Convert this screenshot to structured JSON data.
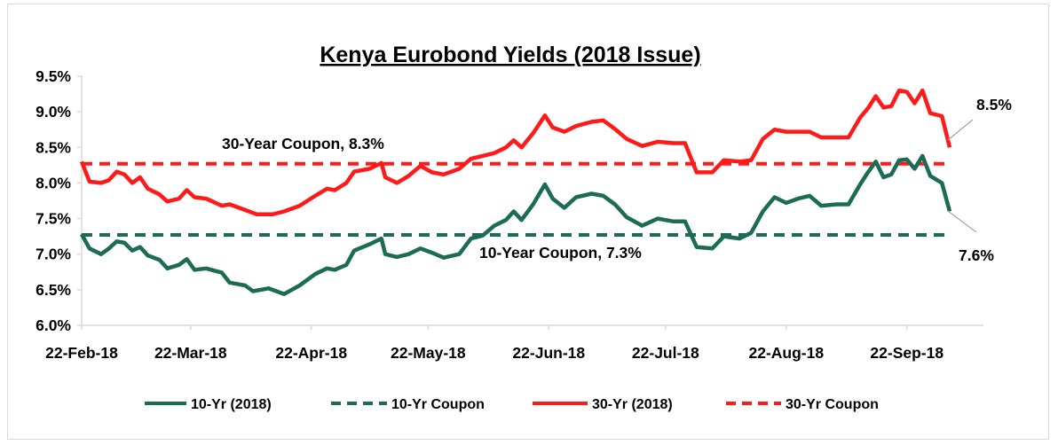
{
  "chart_data": {
    "type": "line",
    "title": "Kenya Eurobond Yields (2018 Issue)",
    "xlabel": "",
    "ylabel": "",
    "x_start": "2018-02-22",
    "x_end": "2018-10-03",
    "x_ticks": [
      {
        "date": "2018-02-22",
        "label": "22-Feb-18"
      },
      {
        "date": "2018-03-22",
        "label": "22-Mar-18"
      },
      {
        "date": "2018-04-22",
        "label": "22-Apr-18"
      },
      {
        "date": "2018-05-22",
        "label": "22-May-18"
      },
      {
        "date": "2018-06-22",
        "label": "22-Jun-18"
      },
      {
        "date": "2018-07-22",
        "label": "22-Jul-18"
      },
      {
        "date": "2018-08-22",
        "label": "22-Aug-18"
      },
      {
        "date": "2018-09-22",
        "label": "22-Sep-18"
      }
    ],
    "ylim": [
      6.0,
      9.5
    ],
    "y_ticks": [
      "6.0%",
      "6.5%",
      "7.0%",
      "7.5%",
      "8.0%",
      "8.5%",
      "9.0%",
      "9.5%"
    ],
    "y_tick_values": [
      6.0,
      6.5,
      7.0,
      7.5,
      8.0,
      8.5,
      9.0,
      9.5
    ],
    "grid": false,
    "legend_position": "bottom",
    "series": [
      {
        "name": "10-Yr (2018)",
        "color": "#1b6b55",
        "style": "solid",
        "points": [
          [
            "2018-02-22",
            7.28
          ],
          [
            "2018-02-24",
            7.08
          ],
          [
            "2018-02-27",
            7.0
          ],
          [
            "2018-03-01",
            7.08
          ],
          [
            "2018-03-03",
            7.18
          ],
          [
            "2018-03-05",
            7.16
          ],
          [
            "2018-03-07",
            7.05
          ],
          [
            "2018-03-09",
            7.1
          ],
          [
            "2018-03-11",
            6.98
          ],
          [
            "2018-03-14",
            6.92
          ],
          [
            "2018-03-16",
            6.8
          ],
          [
            "2018-03-19",
            6.85
          ],
          [
            "2018-03-21",
            6.93
          ],
          [
            "2018-03-23",
            6.78
          ],
          [
            "2018-03-26",
            6.8
          ],
          [
            "2018-03-30",
            6.74
          ],
          [
            "2018-04-01",
            6.6
          ],
          [
            "2018-04-05",
            6.56
          ],
          [
            "2018-04-07",
            6.48
          ],
          [
            "2018-04-11",
            6.52
          ],
          [
            "2018-04-15",
            6.44
          ],
          [
            "2018-04-19",
            6.56
          ],
          [
            "2018-04-23",
            6.72
          ],
          [
            "2018-04-26",
            6.8
          ],
          [
            "2018-04-28",
            6.78
          ],
          [
            "2018-05-01",
            6.85
          ],
          [
            "2018-05-03",
            7.05
          ],
          [
            "2018-05-07",
            7.14
          ],
          [
            "2018-05-10",
            7.22
          ],
          [
            "2018-05-11",
            7.0
          ],
          [
            "2018-05-14",
            6.96
          ],
          [
            "2018-05-17",
            7.0
          ],
          [
            "2018-05-20",
            7.08
          ],
          [
            "2018-05-23",
            7.02
          ],
          [
            "2018-05-26",
            6.95
          ],
          [
            "2018-05-30",
            7.0
          ],
          [
            "2018-06-02",
            7.22
          ],
          [
            "2018-06-05",
            7.26
          ],
          [
            "2018-06-08",
            7.4
          ],
          [
            "2018-06-11",
            7.48
          ],
          [
            "2018-06-13",
            7.6
          ],
          [
            "2018-06-15",
            7.48
          ],
          [
            "2018-06-18",
            7.7
          ],
          [
            "2018-06-21",
            7.98
          ],
          [
            "2018-06-23",
            7.78
          ],
          [
            "2018-06-26",
            7.65
          ],
          [
            "2018-06-29",
            7.8
          ],
          [
            "2018-07-03",
            7.85
          ],
          [
            "2018-07-06",
            7.82
          ],
          [
            "2018-07-09",
            7.7
          ],
          [
            "2018-07-12",
            7.52
          ],
          [
            "2018-07-16",
            7.4
          ],
          [
            "2018-07-20",
            7.5
          ],
          [
            "2018-07-24",
            7.46
          ],
          [
            "2018-07-27",
            7.46
          ],
          [
            "2018-07-30",
            7.1
          ],
          [
            "2018-08-03",
            7.08
          ],
          [
            "2018-08-06",
            7.25
          ],
          [
            "2018-08-10",
            7.22
          ],
          [
            "2018-08-13",
            7.3
          ],
          [
            "2018-08-16",
            7.6
          ],
          [
            "2018-08-19",
            7.8
          ],
          [
            "2018-08-22",
            7.72
          ],
          [
            "2018-08-25",
            7.78
          ],
          [
            "2018-08-28",
            7.82
          ],
          [
            "2018-08-31",
            7.68
          ],
          [
            "2018-09-04",
            7.7
          ],
          [
            "2018-09-07",
            7.7
          ],
          [
            "2018-09-10",
            7.98
          ],
          [
            "2018-09-12",
            8.15
          ],
          [
            "2018-09-14",
            8.3
          ],
          [
            "2018-09-16",
            8.08
          ],
          [
            "2018-09-18",
            8.12
          ],
          [
            "2018-09-20",
            8.32
          ],
          [
            "2018-09-22",
            8.33
          ],
          [
            "2018-09-24",
            8.2
          ],
          [
            "2018-09-26",
            8.38
          ],
          [
            "2018-09-28",
            8.1
          ],
          [
            "2018-10-01",
            8.0
          ],
          [
            "2018-10-03",
            7.6
          ]
        ]
      },
      {
        "name": "10-Yr Coupon",
        "color": "#1b6b55",
        "style": "dashed",
        "points": [
          [
            "2018-02-22",
            7.27
          ],
          [
            "2018-10-03",
            7.27
          ]
        ]
      },
      {
        "name": "30-Yr (2018)",
        "color": "#ff1a1a",
        "style": "solid",
        "points": [
          [
            "2018-02-22",
            8.3
          ],
          [
            "2018-02-24",
            8.02
          ],
          [
            "2018-02-27",
            8.0
          ],
          [
            "2018-03-01",
            8.04
          ],
          [
            "2018-03-03",
            8.16
          ],
          [
            "2018-03-05",
            8.12
          ],
          [
            "2018-03-07",
            8.0
          ],
          [
            "2018-03-09",
            8.08
          ],
          [
            "2018-03-11",
            7.92
          ],
          [
            "2018-03-14",
            7.84
          ],
          [
            "2018-03-16",
            7.74
          ],
          [
            "2018-03-19",
            7.78
          ],
          [
            "2018-03-21",
            7.9
          ],
          [
            "2018-03-23",
            7.8
          ],
          [
            "2018-03-26",
            7.78
          ],
          [
            "2018-03-30",
            7.68
          ],
          [
            "2018-04-01",
            7.7
          ],
          [
            "2018-04-05",
            7.62
          ],
          [
            "2018-04-08",
            7.56
          ],
          [
            "2018-04-12",
            7.56
          ],
          [
            "2018-04-15",
            7.6
          ],
          [
            "2018-04-19",
            7.68
          ],
          [
            "2018-04-23",
            7.82
          ],
          [
            "2018-04-26",
            7.92
          ],
          [
            "2018-04-28",
            7.9
          ],
          [
            "2018-05-01",
            8.0
          ],
          [
            "2018-05-03",
            8.16
          ],
          [
            "2018-05-07",
            8.2
          ],
          [
            "2018-05-10",
            8.28
          ],
          [
            "2018-05-11",
            8.08
          ],
          [
            "2018-05-14",
            8.0
          ],
          [
            "2018-05-17",
            8.1
          ],
          [
            "2018-05-20",
            8.24
          ],
          [
            "2018-05-23",
            8.15
          ],
          [
            "2018-05-26",
            8.12
          ],
          [
            "2018-05-30",
            8.2
          ],
          [
            "2018-06-02",
            8.34
          ],
          [
            "2018-06-05",
            8.38
          ],
          [
            "2018-06-08",
            8.42
          ],
          [
            "2018-06-11",
            8.5
          ],
          [
            "2018-06-13",
            8.6
          ],
          [
            "2018-06-15",
            8.5
          ],
          [
            "2018-06-18",
            8.7
          ],
          [
            "2018-06-21",
            8.95
          ],
          [
            "2018-06-23",
            8.78
          ],
          [
            "2018-06-26",
            8.72
          ],
          [
            "2018-06-29",
            8.8
          ],
          [
            "2018-07-03",
            8.86
          ],
          [
            "2018-07-06",
            8.88
          ],
          [
            "2018-07-09",
            8.76
          ],
          [
            "2018-07-12",
            8.62
          ],
          [
            "2018-07-16",
            8.52
          ],
          [
            "2018-07-20",
            8.58
          ],
          [
            "2018-07-24",
            8.56
          ],
          [
            "2018-07-27",
            8.56
          ],
          [
            "2018-07-30",
            8.15
          ],
          [
            "2018-08-03",
            8.15
          ],
          [
            "2018-08-06",
            8.32
          ],
          [
            "2018-08-10",
            8.3
          ],
          [
            "2018-08-13",
            8.32
          ],
          [
            "2018-08-16",
            8.62
          ],
          [
            "2018-08-19",
            8.75
          ],
          [
            "2018-08-22",
            8.72
          ],
          [
            "2018-08-25",
            8.72
          ],
          [
            "2018-08-28",
            8.72
          ],
          [
            "2018-08-31",
            8.64
          ],
          [
            "2018-09-04",
            8.64
          ],
          [
            "2018-09-07",
            8.64
          ],
          [
            "2018-09-10",
            8.92
          ],
          [
            "2018-09-12",
            9.05
          ],
          [
            "2018-09-14",
            9.22
          ],
          [
            "2018-09-16",
            9.06
          ],
          [
            "2018-09-18",
            9.08
          ],
          [
            "2018-09-20",
            9.3
          ],
          [
            "2018-09-22",
            9.28
          ],
          [
            "2018-09-24",
            9.12
          ],
          [
            "2018-09-26",
            9.3
          ],
          [
            "2018-09-28",
            8.98
          ],
          [
            "2018-10-01",
            8.94
          ],
          [
            "2018-10-03",
            8.5
          ]
        ]
      },
      {
        "name": "30-Yr Coupon",
        "color": "#ff1a1a",
        "style": "dashed",
        "points": [
          [
            "2018-02-22",
            8.27
          ],
          [
            "2018-10-03",
            8.27
          ]
        ]
      }
    ],
    "annotations": [
      {
        "text": "30-Year Coupon,  8.3%"
      },
      {
        "text": "10-Year Coupon,  7.3%"
      },
      {
        "text": "8.5%"
      },
      {
        "text": "7.6%"
      }
    ],
    "legend": [
      {
        "label": "10-Yr (2018)",
        "color": "#1b6b55",
        "style": "solid"
      },
      {
        "label": "10-Yr Coupon",
        "color": "#1b6b55",
        "style": "dashed"
      },
      {
        "label": "30-Yr (2018)",
        "color": "#ff1a1a",
        "style": "solid"
      },
      {
        "label": "30-Yr Coupon",
        "color": "#ff1a1a",
        "style": "dashed"
      }
    ]
  }
}
